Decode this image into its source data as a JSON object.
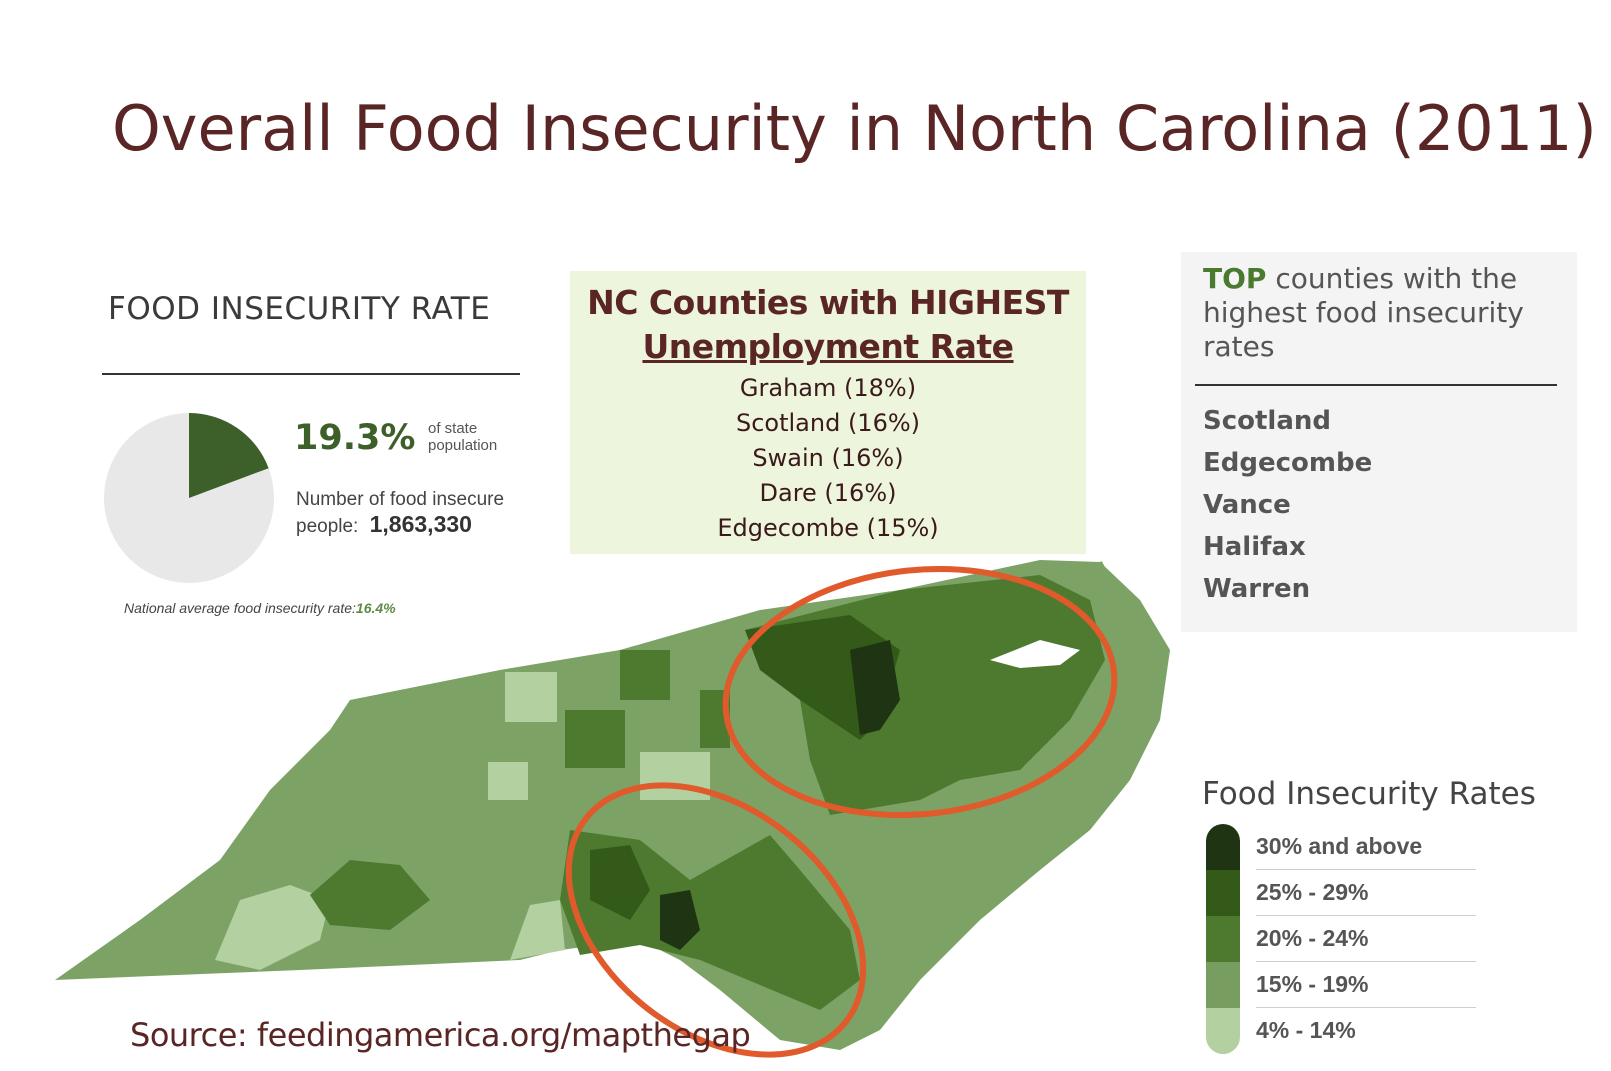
{
  "title": "Overall Food Insecurity in North Carolina (2011)",
  "food_insecurity_panel": {
    "heading": "FOOD INSECURITY RATE",
    "rate": "19.3%",
    "rate_value": 19.3,
    "rate_note": "of state population",
    "people_label": "Number of food insecure people:",
    "people_value": "1,863,330",
    "national_label": "National average food insecurity rate:",
    "national_value": "16.4%"
  },
  "unemployment_box": {
    "title_line1": "NC Counties with HIGHEST",
    "title_line2": "Unemployment Rate",
    "counties": [
      "Graham (18%)",
      "Scotland (16%)",
      "Swain (16%)",
      "Dare (16%)",
      "Edgecombe (15%)"
    ]
  },
  "top_counties": {
    "heading_accent": "TOP",
    "heading_rest": " counties with the highest food insecurity rates",
    "counties": [
      "Scotland",
      "Edgecombe",
      "Vance",
      "Halifax",
      "Warren"
    ]
  },
  "legend": {
    "title": "Food Insecurity Rates",
    "items": [
      {
        "label": "30% and above",
        "color": "#1f3412"
      },
      {
        "label": "25% - 29%",
        "color": "#345a1a"
      },
      {
        "label": "20% - 24%",
        "color": "#4e7a30"
      },
      {
        "label": "15% - 19%",
        "color": "#779d61"
      },
      {
        "label": "4% - 14%",
        "color": "#b3d0a0"
      }
    ]
  },
  "colors": {
    "title": "#5a2525",
    "highlight_ring": "#e05a2c",
    "pie_slice": "#3d5f2a",
    "pie_rest": "#e8e8e8"
  },
  "source": "Source: feedingamerica.org/mapthegap"
}
